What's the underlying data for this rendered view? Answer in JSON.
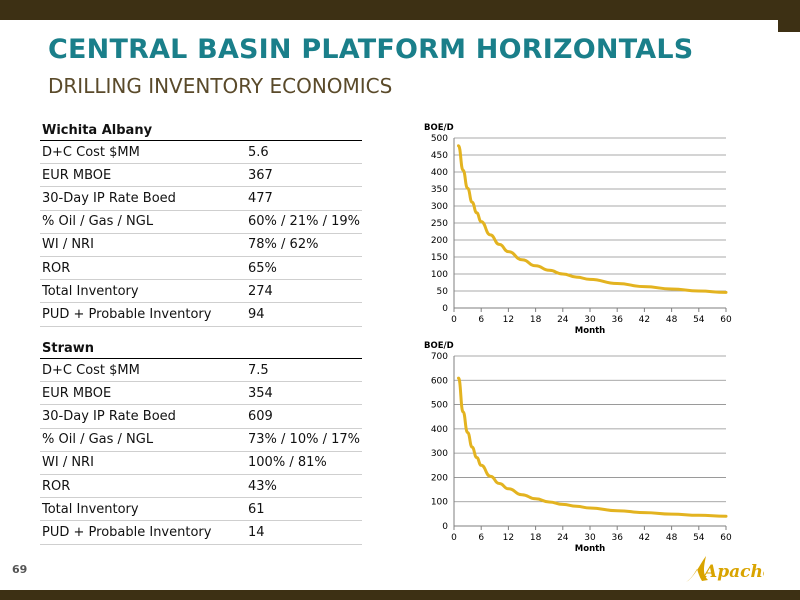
{
  "header": {
    "title": "CENTRAL BASIN PLATFORM HORIZONTALS",
    "subtitle": "DRILLING INVENTORY ECONOMICS"
  },
  "tables": [
    {
      "name": "Wichita Albany",
      "rows": [
        {
          "label": "D+C Cost $MM",
          "value": "5.6"
        },
        {
          "label": "EUR MBOE",
          "value": "367"
        },
        {
          "label": "30-Day IP Rate Boed",
          "value": "477"
        },
        {
          "label": "% Oil / Gas / NGL",
          "value": "60% / 21% / 19%"
        },
        {
          "label": "WI / NRI",
          "value": "78% / 62%"
        },
        {
          "label": "ROR",
          "value": "65%"
        },
        {
          "label": "Total Inventory",
          "value": "274"
        },
        {
          "label": "PUD + Probable Inventory",
          "value": "94"
        }
      ]
    },
    {
      "name": "Strawn",
      "rows": [
        {
          "label": "D+C Cost $MM",
          "value": "7.5"
        },
        {
          "label": "EUR MBOE",
          "value": "354"
        },
        {
          "label": "30-Day IP Rate Boed",
          "value": "609"
        },
        {
          "label": "% Oil / Gas / NGL",
          "value": "73% / 10% / 17%"
        },
        {
          "label": "WI / NRI",
          "value": "100% / 81%"
        },
        {
          "label": "ROR",
          "value": "43%"
        },
        {
          "label": "Total Inventory",
          "value": "61"
        },
        {
          "label": "PUD + Probable Inventory",
          "value": "14"
        }
      ]
    }
  ],
  "chart_data": [
    {
      "type": "line",
      "title": "",
      "ylabel": "BOE/D",
      "xlabel": "Month",
      "xlim": [
        0,
        60
      ],
      "ylim": [
        0,
        500
      ],
      "x_ticks": [
        0,
        6,
        12,
        18,
        24,
        30,
        36,
        42,
        48,
        54,
        60
      ],
      "y_ticks": [
        0,
        50,
        100,
        150,
        200,
        250,
        300,
        350,
        400,
        450,
        500
      ],
      "grid": true,
      "series": [
        {
          "color": "#e3b320",
          "x": [
            1,
            2,
            3,
            4,
            5,
            6,
            8,
            10,
            12,
            15,
            18,
            21,
            24,
            27,
            30,
            36,
            42,
            48,
            54,
            60
          ],
          "y": [
            477,
            405,
            352,
            311,
            280,
            254,
            215,
            187,
            166,
            142,
            124,
            111,
            100,
            91,
            84,
            72,
            63,
            56,
            50,
            46
          ]
        }
      ]
    },
    {
      "type": "line",
      "title": "",
      "ylabel": "BOE/D",
      "xlabel": "Month",
      "xlim": [
        0,
        60
      ],
      "ylim": [
        0,
        700
      ],
      "x_ticks": [
        0,
        6,
        12,
        18,
        24,
        30,
        36,
        42,
        48,
        54,
        60
      ],
      "y_ticks": [
        0,
        100,
        200,
        300,
        400,
        500,
        600,
        700
      ],
      "grid": true,
      "series": [
        {
          "color": "#e3b320",
          "x": [
            1,
            2,
            3,
            4,
            5,
            6,
            8,
            10,
            12,
            15,
            18,
            21,
            24,
            27,
            30,
            36,
            42,
            48,
            54,
            60
          ],
          "y": [
            609,
            470,
            385,
            325,
            282,
            250,
            205,
            175,
            153,
            129,
            112,
            99,
            89,
            81,
            74,
            63,
            55,
            49,
            44,
            40
          ]
        }
      ]
    }
  ],
  "footer": {
    "page_number": "69",
    "logo_text": "Apache"
  },
  "colors": {
    "bar": "#3d3014",
    "title": "#1a7f8a",
    "subtitle": "#5a4a2a",
    "curve": "#e3b320",
    "logo": "#d9a400"
  }
}
